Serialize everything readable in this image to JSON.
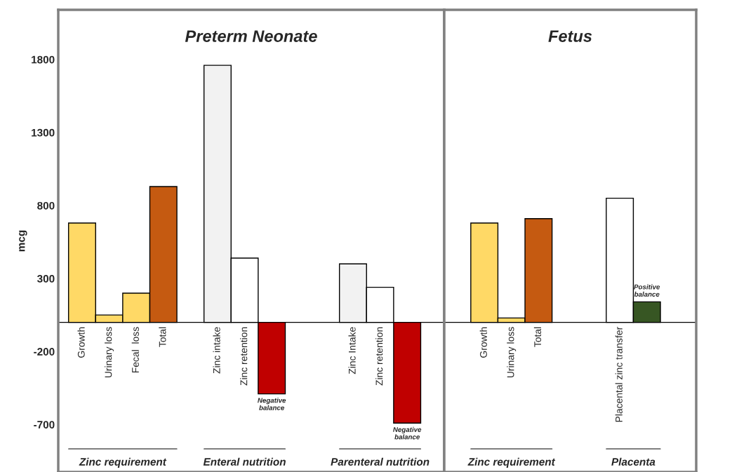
{
  "chart_data": [
    {
      "type": "bar",
      "title": "Preterm Neonate",
      "ylabel": "mcg",
      "categories": [
        "Growth",
        "Urinary loss",
        "Fecal  loss",
        "Total",
        null,
        "Zinc intake",
        "Zinc retention",
        null,
        null,
        null,
        "Zinc Intake",
        "Zinc retention",
        null
      ],
      "series": [
        {
          "colors": [
            "#ffd966",
            "#ffd966",
            "#ffd966",
            "#c55a11",
            null,
            "#f2f2f2",
            "#ffffff",
            null,
            null,
            null,
            "#f2f2f2",
            "#ffffff",
            null
          ],
          "values": [
            680,
            50,
            200,
            930,
            null,
            1760,
            440,
            null,
            null,
            null,
            400,
            240,
            null
          ]
        },
        {
          "name": "Negative balance",
          "color": "#c00000",
          "values": [
            null,
            null,
            null,
            null,
            null,
            null,
            null,
            -490,
            null,
            null,
            null,
            null,
            -690
          ]
        }
      ],
      "annotations": [
        "Zinc requirement",
        "Enteral nutrition",
        "Parenteral nutrition"
      ],
      "ylim": [
        -1025,
        2140
      ],
      "yticks": [
        -700,
        -200,
        300,
        800,
        1300,
        1800
      ],
      "grid": false,
      "legend": false
    },
    {
      "type": "bar",
      "title": "Fetus",
      "categories": [
        "Growth",
        "Urinary loss",
        "Total",
        null,
        null,
        "Placental zinc transfer",
        null
      ],
      "series": [
        {
          "colors": [
            "#ffd966",
            "#ffd966",
            "#c55a11",
            null,
            null,
            "#ffffff",
            null
          ],
          "values": [
            680,
            30,
            710,
            null,
            null,
            850,
            null
          ]
        },
        {
          "name": "Positive balance",
          "color": "#375623",
          "values": [
            null,
            null,
            null,
            null,
            null,
            null,
            140
          ]
        }
      ],
      "annotations": [
        "Zinc requirement",
        "Placenta"
      ],
      "ylim": [
        -1025,
        2140
      ],
      "yticks": [
        -700,
        -200,
        300,
        800,
        1300,
        1800
      ],
      "tick_labels": "x",
      "grid": false,
      "legend": false
    }
  ]
}
